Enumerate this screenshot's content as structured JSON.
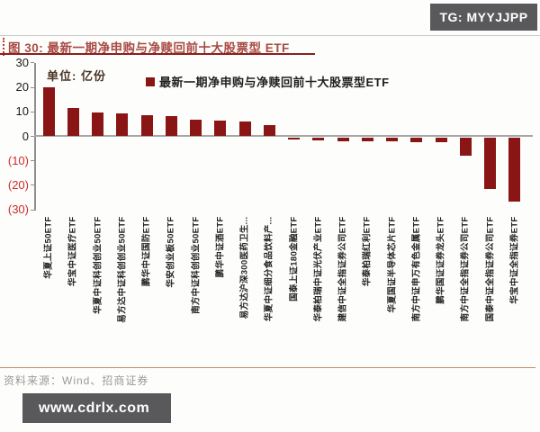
{
  "badges": {
    "tg": "TG: MYYJJPP",
    "watermark": "www.cdrlx.com"
  },
  "figure": {
    "title": "图 30: 最新一期净申购与净赎回前十大股票型 ETF"
  },
  "chart_data": {
    "type": "bar",
    "title": "最新一期净申购与净赎回前十大股票型ETF",
    "unit_label": "单位: 亿份",
    "legend": "最新一期净申购与净赎回前十大股票型ETF",
    "ylabel": "亿份",
    "xlabel": "",
    "ylim": [
      -30,
      30
    ],
    "yticks": [
      30,
      20,
      10,
      0,
      -10,
      -20,
      -30
    ],
    "ytick_labels": [
      "30",
      "20",
      "10",
      "0",
      "(10)",
      "(20)",
      "(30)"
    ],
    "grid": false,
    "legend_position": "top",
    "bar_color": "#8a1515",
    "categories": [
      "华夏上证50ETF",
      "华宝中证医疗ETF",
      "华夏中证科创创业50ETF",
      "易方达中证科创创业50ETF",
      "鹏华中证国防ETF",
      "华安创业板50ETF",
      "南方中证科创创业50ETF",
      "鹏华中证酒ETF",
      "易方达沪深300医药卫生...",
      "华夏中证细分食品饮料产...",
      "国泰上证180金融ETF",
      "华泰柏瑞中证光伏产业ETF",
      "建信中证全指证券公司ETF",
      "华泰柏瑞红利ETF",
      "华夏国证半导体芯片ETF",
      "南方中证申万有色金属ETF",
      "鹏华国证证券龙头ETF",
      "南方中证全指证券公司ETF",
      "国泰中证全指证券公司ETF",
      "华宝中证全指证券ETF"
    ],
    "values": [
      20.0,
      11.5,
      9.4,
      9.1,
      8.5,
      8.0,
      6.7,
      6.3,
      6.0,
      4.4,
      -0.9,
      -1.1,
      -1.4,
      -1.5,
      -1.6,
      -1.7,
      -1.8,
      -7.3,
      -21.0,
      -26.0
    ]
  },
  "footer": {
    "source": "资料来源：Wind、招商证券"
  }
}
